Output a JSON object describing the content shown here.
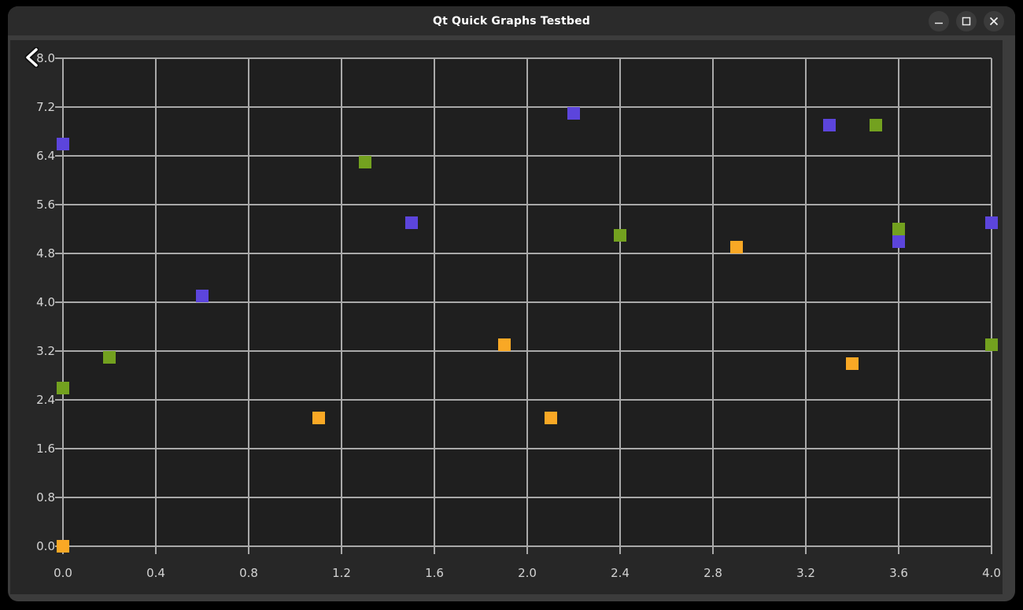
{
  "window": {
    "title": "Qt Quick Graphs Testbed",
    "controls": [
      {
        "name": "minimize"
      },
      {
        "name": "maximize"
      },
      {
        "name": "close"
      }
    ]
  },
  "cursor": {
    "icon": "chevron-left"
  },
  "colors": {
    "frame_bg": "#3C3C3C",
    "titlebar_bg": "#2B2B2B",
    "button_bg": "#3B3B3B",
    "title_text": "#FFFFFF",
    "chart_bg": "#272727",
    "plot_bg": "#1F1F1F",
    "grid_line": "#A9A9A9",
    "tick_label": "#D3D3D3"
  },
  "chart_data": {
    "type": "scatter",
    "title": "",
    "xlabel": "",
    "ylabel": "",
    "xlim": [
      0.0,
      4.0
    ],
    "ylim": [
      0.0,
      8.0
    ],
    "x_ticks": [
      "0.0",
      "0.4",
      "0.8",
      "1.2",
      "1.6",
      "2.0",
      "2.4",
      "2.8",
      "3.2",
      "3.6",
      "4.0"
    ],
    "y_ticks": [
      "0.0",
      "0.8",
      "1.6",
      "2.4",
      "3.2",
      "4.0",
      "4.8",
      "5.6",
      "6.4",
      "7.2",
      "8.0"
    ],
    "grid": true,
    "legend": "none",
    "marker": "square",
    "marker_size_px": 16,
    "series": [
      {
        "name": "purple-series",
        "color": "#5C45DC",
        "points": [
          [
            0.0,
            6.6
          ],
          [
            0.6,
            4.1
          ],
          [
            1.5,
            5.3
          ],
          [
            2.2,
            7.1
          ],
          [
            3.3,
            6.9
          ],
          [
            3.6,
            5.0
          ],
          [
            4.0,
            5.3
          ]
        ]
      },
      {
        "name": "green-series",
        "color": "#73A11F",
        "points": [
          [
            0.0,
            2.6
          ],
          [
            0.2,
            3.1
          ],
          [
            1.3,
            6.3
          ],
          [
            2.4,
            5.1
          ],
          [
            3.5,
            6.9
          ],
          [
            3.6,
            5.2
          ],
          [
            4.0,
            3.3
          ]
        ]
      },
      {
        "name": "orange-series",
        "color": "#F9A825",
        "points": [
          [
            0.0,
            0.0
          ],
          [
            1.1,
            2.1
          ],
          [
            1.9,
            3.3
          ],
          [
            2.1,
            2.1
          ],
          [
            2.9,
            4.9
          ],
          [
            3.4,
            3.0
          ]
        ]
      }
    ]
  }
}
